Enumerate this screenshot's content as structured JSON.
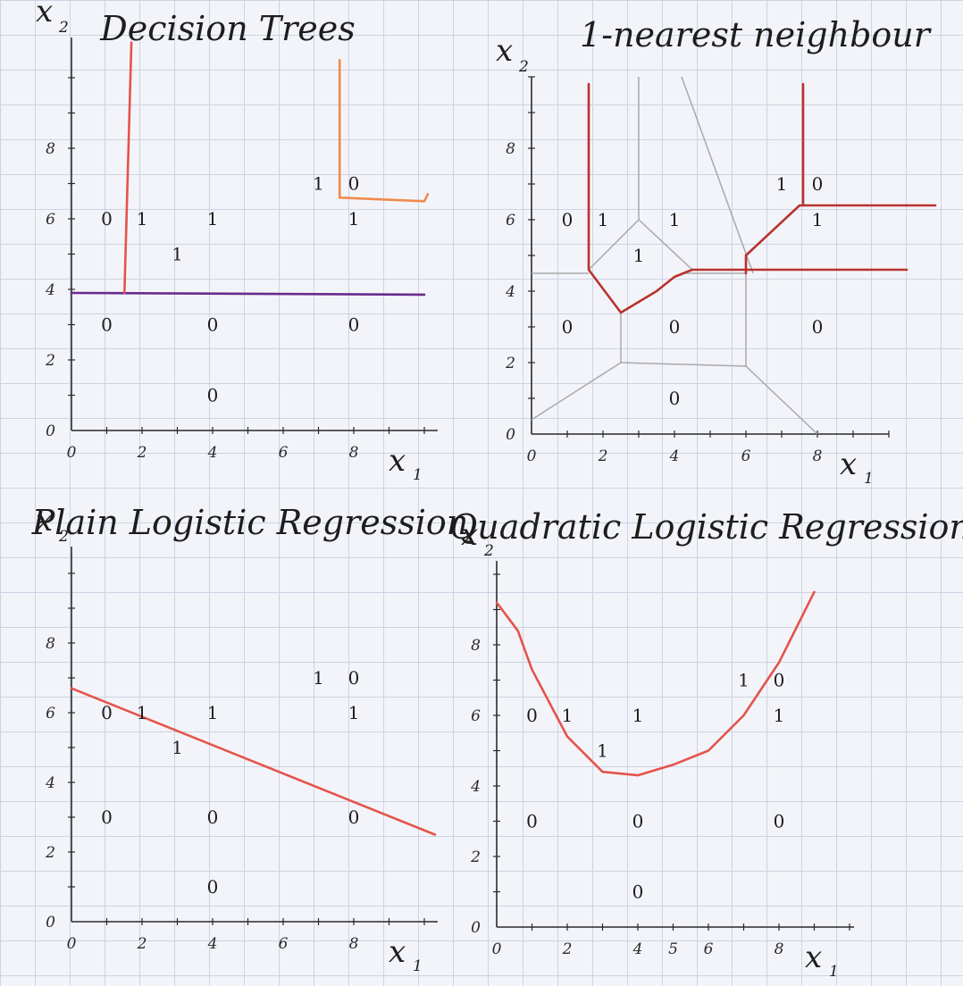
{
  "chart_data": [
    {
      "type": "scatter",
      "title": "Decision Trees",
      "xlabel": "x",
      "xlabel_sub": "1",
      "ylabel": "x",
      "ylabel_sub": "2",
      "xlim": [
        0,
        10
      ],
      "ylim": [
        0,
        10
      ],
      "x_ticks": [
        0,
        2,
        4,
        6,
        8
      ],
      "y_ticks": [
        0,
        2,
        4,
        6,
        8
      ],
      "points": [
        {
          "x": 1,
          "y": 6,
          "label": "0"
        },
        {
          "x": 2,
          "y": 6,
          "label": "1"
        },
        {
          "x": 4,
          "y": 6,
          "label": "1"
        },
        {
          "x": 3,
          "y": 5,
          "label": "1"
        },
        {
          "x": 7,
          "y": 7,
          "label": "1"
        },
        {
          "x": 8,
          "y": 7,
          "label": "0"
        },
        {
          "x": 8,
          "y": 6,
          "label": "1"
        },
        {
          "x": 1,
          "y": 3,
          "label": "0"
        },
        {
          "x": 4,
          "y": 3,
          "label": "0"
        },
        {
          "x": 8,
          "y": 3,
          "label": "0"
        },
        {
          "x": 4,
          "y": 1,
          "label": "0"
        }
      ],
      "boundaries": [
        {
          "color": "#6a2a8c",
          "points": [
            [
              0,
              3.9
            ],
            [
              10,
              3.85
            ]
          ]
        },
        {
          "color": "#e5534b",
          "points": [
            [
              1.5,
              3.9
            ],
            [
              1.7,
              11
            ]
          ]
        },
        {
          "color": "#f08a4b",
          "points": [
            [
              7.6,
              10.5
            ],
            [
              7.6,
              6.6
            ],
            [
              10,
              6.5
            ],
            [
              10.1,
              6.7
            ]
          ]
        }
      ]
    },
    {
      "type": "scatter",
      "title": "1-nearest neighbour",
      "xlabel": "x",
      "xlabel_sub": "1",
      "ylabel": "x",
      "ylabel_sub": "2",
      "xlim": [
        0,
        10
      ],
      "ylim": [
        0,
        10
      ],
      "x_ticks": [
        0,
        2,
        4,
        6,
        8
      ],
      "y_ticks": [
        0,
        2,
        4,
        6,
        8
      ],
      "points": [
        {
          "x": 1,
          "y": 6,
          "label": "0"
        },
        {
          "x": 2,
          "y": 6,
          "label": "1"
        },
        {
          "x": 4,
          "y": 6,
          "label": "1"
        },
        {
          "x": 3,
          "y": 5,
          "label": "1"
        },
        {
          "x": 7,
          "y": 7,
          "label": "1"
        },
        {
          "x": 8,
          "y": 7,
          "label": "0"
        },
        {
          "x": 8,
          "y": 6,
          "label": "1"
        },
        {
          "x": 1,
          "y": 3,
          "label": "0"
        },
        {
          "x": 4,
          "y": 3,
          "label": "0"
        },
        {
          "x": 8,
          "y": 3,
          "label": "0"
        },
        {
          "x": 4,
          "y": 1,
          "label": "0"
        }
      ],
      "voronoi_edges": [
        [
          [
            3.0,
            10
          ],
          [
            3.0,
            6.0
          ]
        ],
        [
          [
            4.2,
            10
          ],
          [
            6.2,
            4.5
          ]
        ],
        [
          [
            0,
            4.5
          ],
          [
            1.6,
            4.5
          ]
        ],
        [
          [
            1.6,
            4.6
          ],
          [
            3.0,
            6.0
          ]
        ],
        [
          [
            3.0,
            6.0
          ],
          [
            4.5,
            4.6
          ]
        ],
        [
          [
            2.5,
            3.4
          ],
          [
            2.5,
            2.0
          ]
        ],
        [
          [
            2.5,
            2.0
          ],
          [
            6.0,
            1.9
          ]
        ],
        [
          [
            6.0,
            1.9
          ],
          [
            6.0,
            4.5
          ]
        ],
        [
          [
            2.5,
            2.0
          ],
          [
            0,
            0.4
          ]
        ],
        [
          [
            6.0,
            1.9
          ],
          [
            8.0,
            0
          ]
        ],
        [
          [
            6.0,
            5.0
          ],
          [
            7.5,
            6.4
          ]
        ],
        [
          [
            4.2,
            4.5
          ],
          [
            6.0,
            4.5
          ]
        ]
      ],
      "boundaries": [
        {
          "color": "#b8322e",
          "points": [
            [
              1.6,
              9.8
            ],
            [
              1.6,
              4.6
            ],
            [
              2.5,
              3.4
            ],
            [
              3.5,
              4.0
            ],
            [
              4.0,
              4.4
            ],
            [
              4.5,
              4.6
            ],
            [
              10.5,
              4.6
            ]
          ]
        },
        {
          "color": "#b8322e",
          "points": [
            [
              6.0,
              4.5
            ],
            [
              6.0,
              5.0
            ],
            [
              7.5,
              6.4
            ],
            [
              11.3,
              6.4
            ]
          ]
        },
        {
          "color": "#b8322e",
          "points": [
            [
              7.6,
              9.8
            ],
            [
              7.6,
              6.4
            ]
          ]
        }
      ]
    },
    {
      "type": "scatter",
      "title": "Plain Logistic Regression",
      "xlabel": "x",
      "xlabel_sub": "1",
      "ylabel": "x",
      "ylabel_sub": "2",
      "xlim": [
        0,
        10
      ],
      "ylim": [
        0,
        10
      ],
      "x_ticks": [
        0,
        2,
        4,
        6,
        8
      ],
      "y_ticks": [
        0,
        2,
        4,
        6,
        8
      ],
      "points": [
        {
          "x": 1,
          "y": 6,
          "label": "0"
        },
        {
          "x": 2,
          "y": 6,
          "label": "1"
        },
        {
          "x": 4,
          "y": 6,
          "label": "1"
        },
        {
          "x": 3,
          "y": 5,
          "label": "1"
        },
        {
          "x": 7,
          "y": 7,
          "label": "1"
        },
        {
          "x": 8,
          "y": 7,
          "label": "0"
        },
        {
          "x": 8,
          "y": 6,
          "label": "1"
        },
        {
          "x": 1,
          "y": 3,
          "label": "0"
        },
        {
          "x": 4,
          "y": 3,
          "label": "0"
        },
        {
          "x": 8,
          "y": 3,
          "label": "0"
        },
        {
          "x": 4,
          "y": 1,
          "label": "0"
        }
      ],
      "boundaries": [
        {
          "color": "#e5534b",
          "points": [
            [
              0,
              6.7
            ],
            [
              10.3,
              2.5
            ]
          ]
        }
      ]
    },
    {
      "type": "scatter",
      "title": "Quadratic Logistic Regression",
      "xlabel": "x",
      "xlabel_sub": "1",
      "ylabel": "x",
      "ylabel_sub": "2",
      "xlim": [
        0,
        10
      ],
      "ylim": [
        0,
        10
      ],
      "x_ticks": [
        0,
        2,
        4,
        5,
        6,
        8
      ],
      "y_ticks": [
        0,
        2,
        4,
        6,
        8
      ],
      "points": [
        {
          "x": 1,
          "y": 6,
          "label": "0"
        },
        {
          "x": 2,
          "y": 6,
          "label": "1"
        },
        {
          "x": 4,
          "y": 6,
          "label": "1"
        },
        {
          "x": 3,
          "y": 5,
          "label": "1"
        },
        {
          "x": 7,
          "y": 7,
          "label": "1"
        },
        {
          "x": 8,
          "y": 7,
          "label": "0"
        },
        {
          "x": 8,
          "y": 6,
          "label": "1"
        },
        {
          "x": 1,
          "y": 3,
          "label": "0"
        },
        {
          "x": 4,
          "y": 3,
          "label": "0"
        },
        {
          "x": 8,
          "y": 3,
          "label": "0"
        },
        {
          "x": 4,
          "y": 1,
          "label": "0"
        }
      ],
      "boundaries": [
        {
          "color": "#e5534b",
          "points": [
            [
              0,
              9.2
            ],
            [
              0.6,
              8.4
            ],
            [
              1.0,
              7.3
            ],
            [
              2.0,
              5.4
            ],
            [
              3.0,
              4.4
            ],
            [
              4.0,
              4.3
            ],
            [
              5.0,
              4.6
            ],
            [
              6.0,
              5.0
            ],
            [
              7.0,
              6.0
            ],
            [
              8.0,
              7.5
            ],
            [
              9.0,
              9.5
            ]
          ]
        }
      ]
    }
  ]
}
